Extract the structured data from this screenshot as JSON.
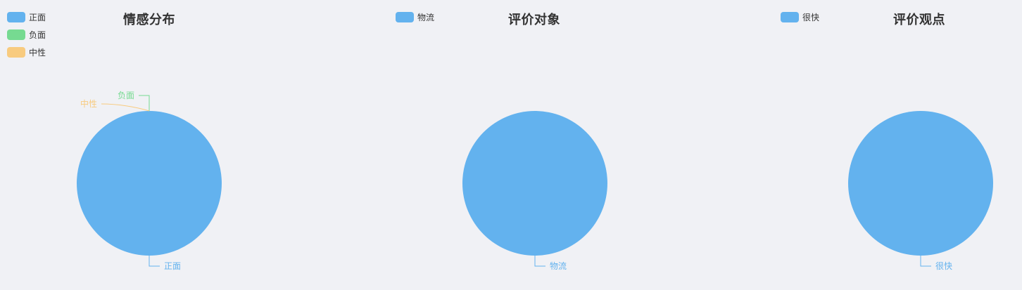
{
  "chart_data": [
    {
      "type": "pie",
      "title": "情感分布",
      "legend": [
        "正面",
        "负面",
        "中性"
      ],
      "colors": [
        "#63b2ee",
        "#76da91",
        "#f8cb7f"
      ],
      "slices": [
        {
          "name": "正面",
          "value": 1
        },
        {
          "name": "负面",
          "value": 0
        },
        {
          "name": "中性",
          "value": 0
        }
      ]
    },
    {
      "type": "pie",
      "title": "评价对象",
      "legend": [
        "物流"
      ],
      "colors": [
        "#63b2ee"
      ],
      "slices": [
        {
          "name": "物流",
          "value": 1
        }
      ]
    },
    {
      "type": "pie",
      "title": "评价观点",
      "legend": [
        "很快"
      ],
      "colors": [
        "#63b2ee"
      ],
      "slices": [
        {
          "name": "很快",
          "value": 1
        }
      ]
    }
  ]
}
